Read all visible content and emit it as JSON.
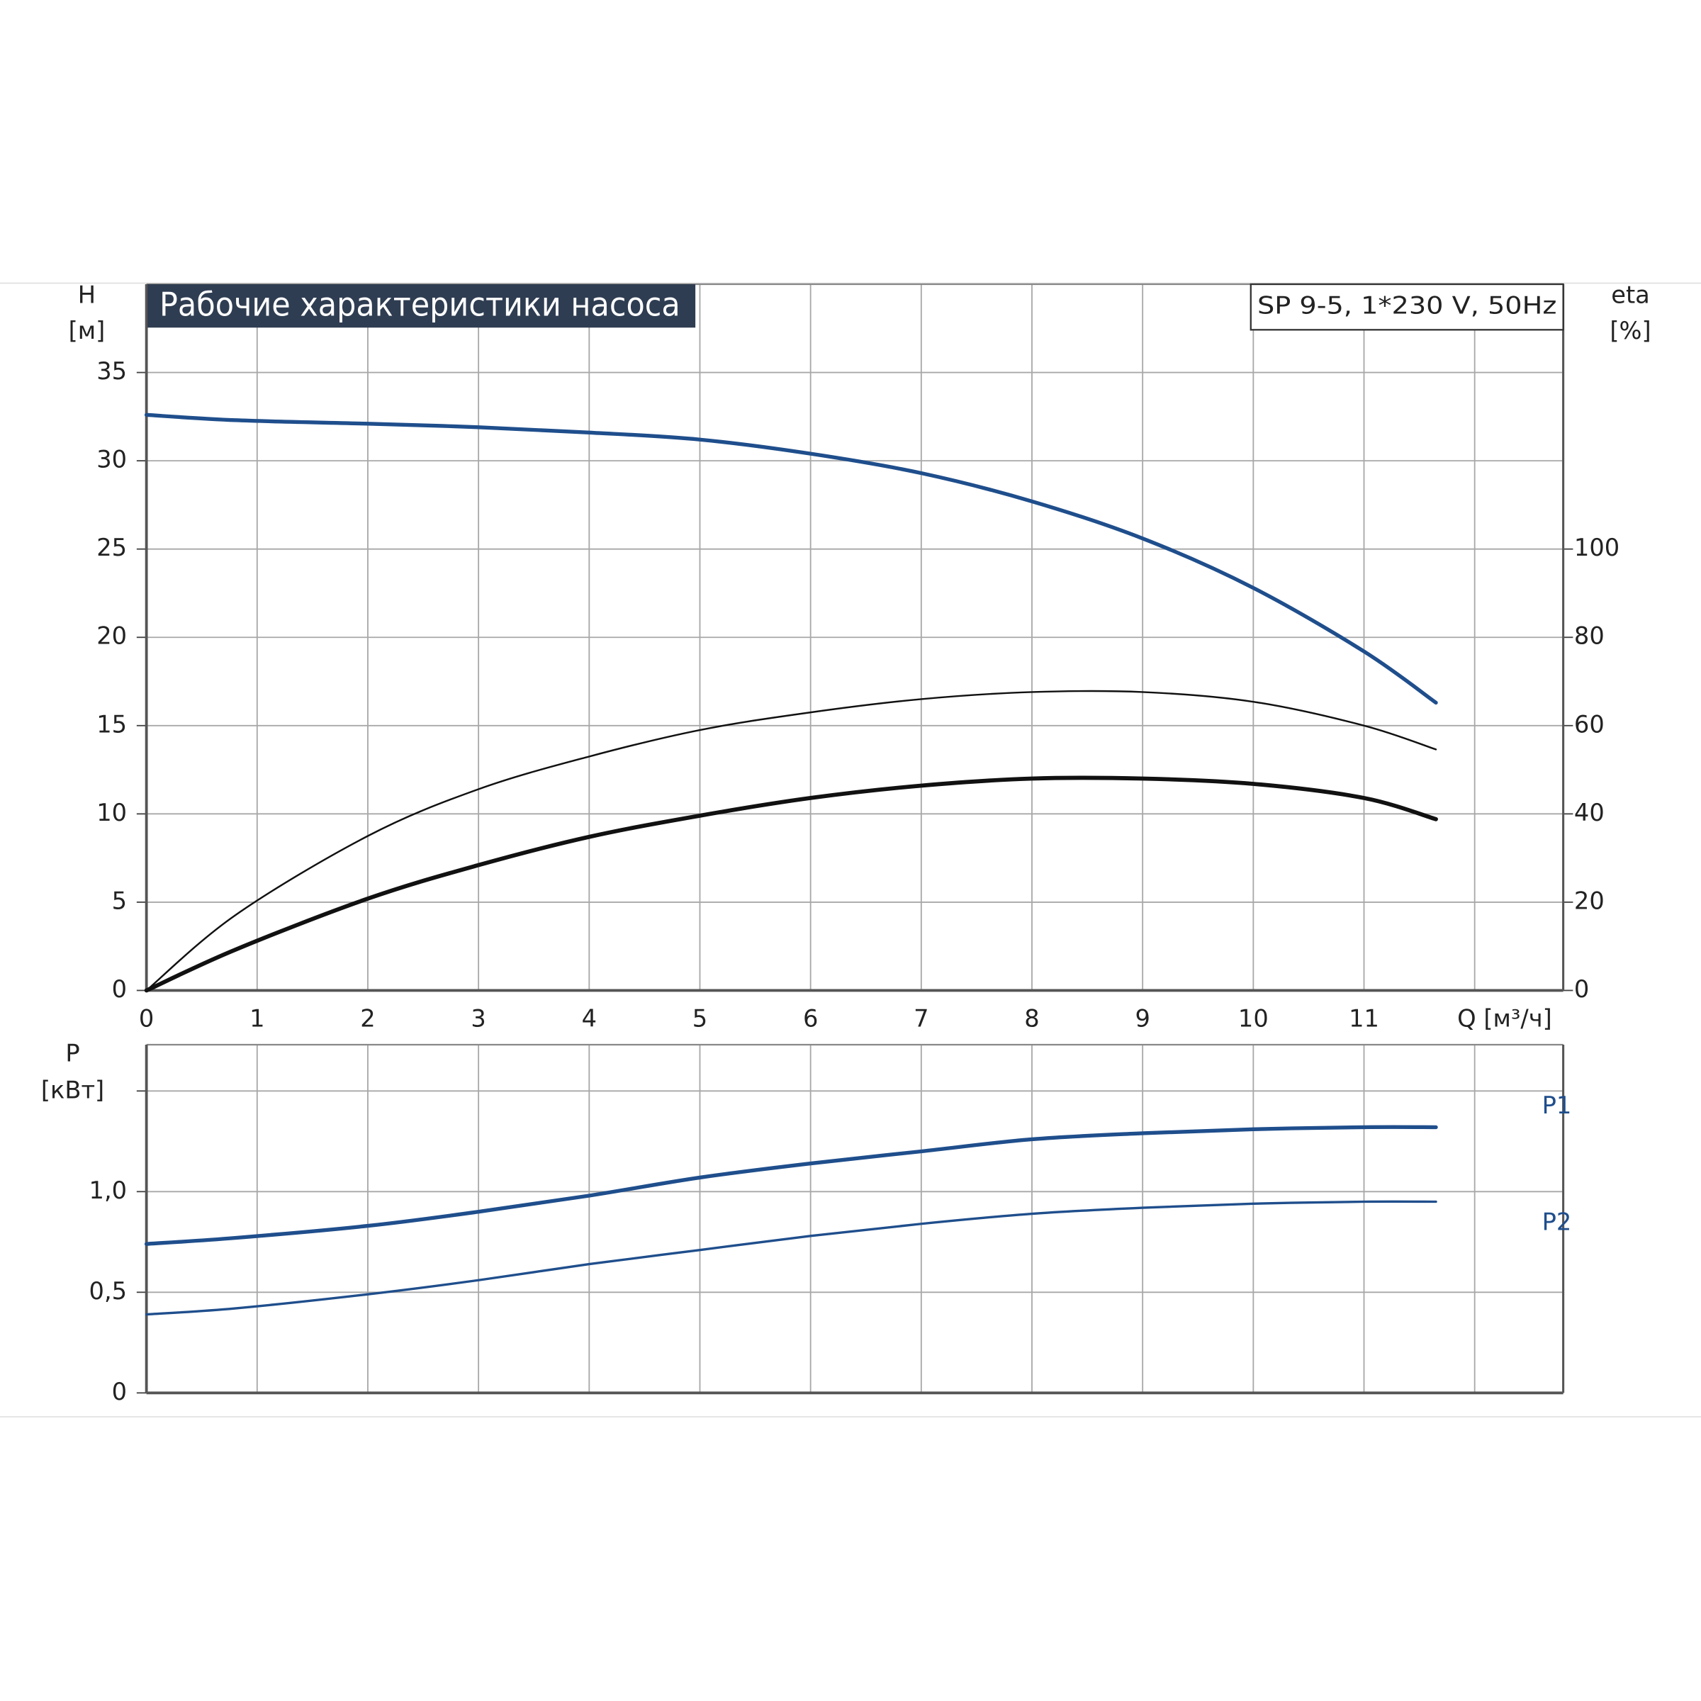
{
  "chart_data": [
    {
      "type": "line",
      "title": "Рабочие характеристики насоса",
      "subtitle": "SP 9-5, 1*230 V, 50Hz",
      "y_label": "H",
      "y_unit": "[м]",
      "y2_label": "eta",
      "y2_unit": "[%]",
      "x": [
        0,
        0.8,
        2,
        3,
        4,
        5,
        6,
        7,
        8,
        9,
        10,
        11,
        11.65
      ],
      "xlim": [
        0,
        12.8
      ],
      "xticks": [
        0,
        1,
        2,
        3,
        4,
        5,
        6,
        7,
        8,
        9,
        10,
        11,
        {
          "value": 12,
          "label": "Q [м³/ч]"
        }
      ],
      "ylim": [
        0,
        40
      ],
      "yticks": [
        0,
        5,
        10,
        15,
        20,
        25,
        30,
        35
      ],
      "y2lim": [
        0,
        160
      ],
      "y2ticks": [
        0,
        20,
        40,
        60,
        80,
        100
      ],
      "grid": true,
      "series": [
        {
          "color": "#1f4e8c",
          "axis": "y",
          "values": [
            32.6,
            32.3,
            32.1,
            31.9,
            31.6,
            31.2,
            30.4,
            29.3,
            27.7,
            25.6,
            22.8,
            19.2,
            16.3
          ]
        },
        {
          "color": "#111111",
          "axis": "y2",
          "values": [
            0,
            17,
            35,
            45.6,
            53,
            59,
            63,
            66,
            67.6,
            67.6,
            65.4,
            60,
            54.6
          ]
        },
        {
          "color": "#111111",
          "axis": "y2",
          "values": [
            0,
            9.2,
            20.8,
            28.4,
            34.8,
            39.6,
            43.6,
            46.4,
            48,
            48,
            46.8,
            43.6,
            38.8
          ]
        }
      ]
    },
    {
      "type": "line",
      "y_label": "P",
      "y_unit": "[кВт]",
      "x": [
        0,
        0.8,
        2,
        3,
        4,
        5,
        6,
        7,
        8,
        9,
        10,
        11,
        11.65
      ],
      "xlim": [
        0,
        12.8
      ],
      "ylim": [
        0,
        1.73
      ],
      "yticks": [
        0,
        {
          "value": 0.5,
          "label": "0,5"
        },
        {
          "value": 1,
          "label": "1,0"
        },
        {
          "value": 1.5,
          "label": null
        }
      ],
      "grid": true,
      "series": [
        {
          "name": "P1",
          "color": "#1f4e8c",
          "values": [
            0.74,
            0.77,
            0.83,
            0.9,
            0.98,
            1.07,
            1.14,
            1.2,
            1.26,
            1.29,
            1.31,
            1.32,
            1.32
          ]
        },
        {
          "name": "P2",
          "color": "#1f4e8c",
          "values": [
            0.39,
            0.42,
            0.49,
            0.56,
            0.64,
            0.71,
            0.78,
            0.84,
            0.89,
            0.92,
            0.94,
            0.95,
            0.95
          ]
        }
      ]
    }
  ]
}
